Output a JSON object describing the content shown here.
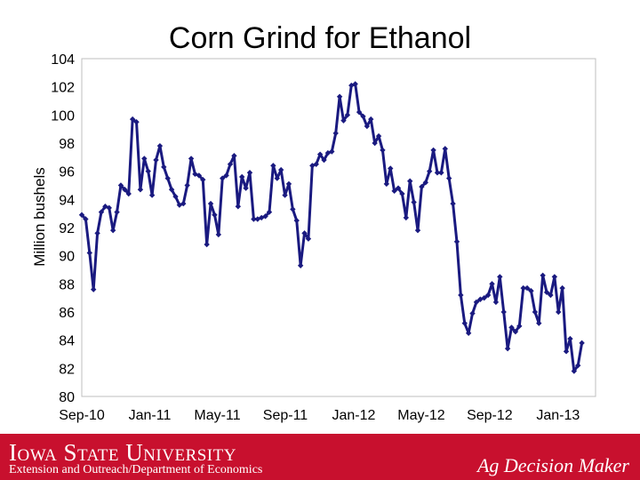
{
  "chart_data": {
    "type": "line",
    "title": "Corn Grind for Ethanol",
    "xlabel": "",
    "ylabel": "Million bushels",
    "ylim": [
      80,
      104
    ],
    "yticks": [
      80,
      82,
      84,
      86,
      88,
      90,
      92,
      94,
      96,
      98,
      100,
      102,
      104
    ],
    "xticks": [
      {
        "label": "Sep-10",
        "week": 0
      },
      {
        "label": "Jan-11",
        "week": 17.4
      },
      {
        "label": "May-11",
        "week": 34.7
      },
      {
        "label": "Sep-11",
        "week": 52.1
      },
      {
        "label": "Jan-12",
        "week": 69.6
      },
      {
        "label": "May-12",
        "week": 86.9
      },
      {
        "label": "Sep-12",
        "week": 104.4
      },
      {
        "label": "Jan-13",
        "week": 121.9
      }
    ],
    "xlim": [
      0,
      131.5
    ],
    "grid": false,
    "legend": "none",
    "marker": "diamond",
    "line_color": "#1a1a80",
    "series": [
      {
        "values": [
          92.9,
          92.6,
          90.2,
          87.6,
          91.6,
          93.1,
          93.5,
          93.4,
          91.8,
          93.1,
          95.0,
          94.7,
          94.4,
          99.7,
          99.5,
          94.7,
          96.9,
          96.0,
          94.3,
          96.8,
          97.8,
          96.3,
          95.5,
          94.7,
          94.2,
          93.6,
          93.7,
          95.0,
          96.9,
          95.8,
          95.7,
          95.4,
          90.8,
          93.7,
          92.9,
          91.5,
          95.5,
          95.7,
          96.5,
          97.1,
          93.5,
          95.6,
          94.8,
          95.9,
          92.6,
          92.6,
          92.7,
          92.8,
          93.1,
          96.4,
          95.5,
          96.1,
          94.3,
          95.1,
          93.3,
          92.5,
          89.3,
          91.6,
          91.2,
          96.4,
          96.5,
          97.2,
          96.8,
          97.3,
          97.4,
          98.7,
          101.3,
          99.6,
          100.0,
          102.1,
          102.2,
          100.2,
          99.9,
          99.2,
          99.7,
          98.0,
          98.5,
          97.5,
          95.1,
          96.2,
          94.6,
          94.8,
          94.4,
          92.7,
          95.3,
          93.8,
          91.8,
          94.9,
          95.2,
          96.0,
          97.5,
          95.9,
          95.9,
          97.6,
          95.5,
          93.7,
          91.0,
          87.2,
          85.2,
          84.5,
          85.9,
          86.7,
          86.9,
          87.0,
          87.2,
          88.0,
          86.7,
          88.5,
          86.0,
          83.4,
          84.9,
          84.6,
          85.0,
          87.7,
          87.7,
          87.5,
          86.0,
          85.2,
          88.6,
          87.4,
          87.2,
          88.5,
          86.0,
          87.7,
          83.2,
          84.1,
          81.8,
          82.2,
          83.8
        ]
      }
    ]
  },
  "footer": {
    "university": "Iowa State University",
    "department": "Extension and Outreach/Department of Economics",
    "brand": "Ag Decision Maker",
    "color": "#c8102e"
  }
}
